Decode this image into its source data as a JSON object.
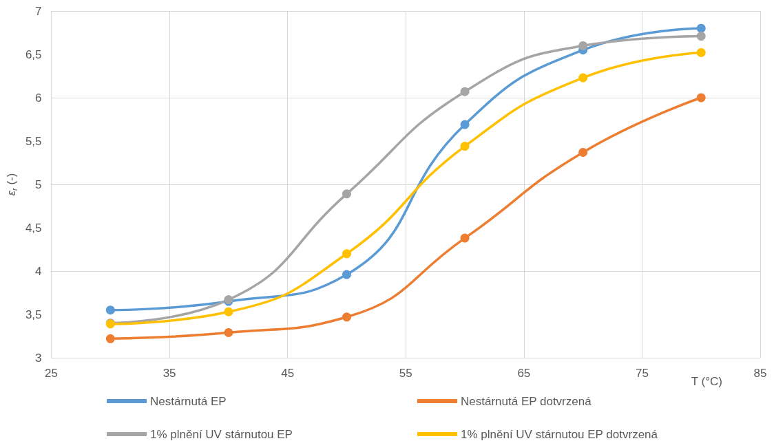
{
  "chart_data": {
    "type": "line",
    "xlabel": "T (°C)",
    "ylabel": "ε$_{r}$ (-)",
    "x": [
      30,
      40,
      50,
      60,
      70,
      80
    ],
    "series": [
      {
        "name": "Nestárnutá EP",
        "color": "#5b9bd5",
        "values": [
          3.55,
          3.65,
          3.96,
          5.69,
          6.55,
          6.8
        ]
      },
      {
        "name": "Nestárnutá EP dotvrzená",
        "color": "#ed7d31",
        "values": [
          3.22,
          3.29,
          3.47,
          4.38,
          5.37,
          6.0
        ]
      },
      {
        "name": "1% plnění UV stárnutou EP",
        "color": "#a5a5a5",
        "values": [
          3.4,
          3.67,
          4.89,
          6.07,
          6.6,
          6.71
        ]
      },
      {
        "name": "1% plnění UV stárnutou EP dotvrzená",
        "color": "#ffc000",
        "values": [
          3.39,
          3.53,
          4.2,
          5.44,
          6.23,
          6.52
        ]
      }
    ],
    "xlim": [
      25,
      85
    ],
    "xticks": [
      25,
      35,
      45,
      55,
      65,
      75,
      85
    ],
    "ylim": [
      3,
      7
    ],
    "yticks": [
      3,
      {
        "value": 3.5,
        "label": "3,5"
      },
      4,
      {
        "value": 4.5,
        "label": "4,5"
      },
      5,
      {
        "value": 5.5,
        "label": "5,5"
      },
      6,
      {
        "value": 6.5,
        "label": "6,5"
      },
      7
    ],
    "grid": true,
    "legend": "bottom",
    "marker": "circle",
    "line_style": "solid"
  }
}
